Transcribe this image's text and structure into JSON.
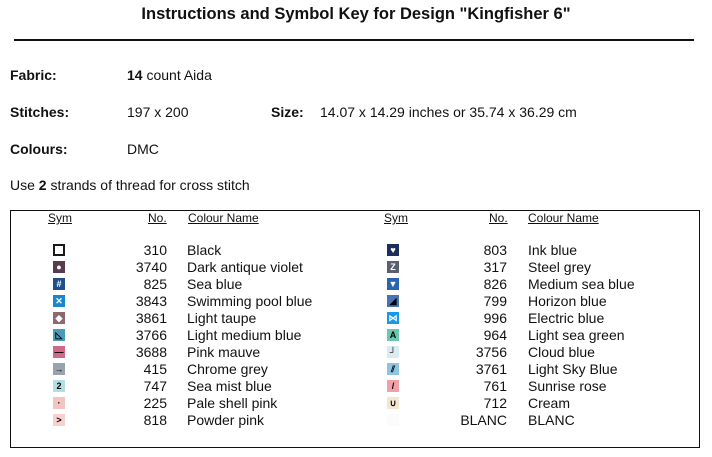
{
  "title": "Instructions and Symbol Key for Design \"Kingfisher 6\"",
  "fabric": {
    "label": "Fabric:",
    "count": "14",
    "rest": " count Aida"
  },
  "stitches": {
    "label": "Stitches:",
    "value": "197 x 200"
  },
  "size": {
    "label": "Size:",
    "value": "14.07 x 14.29 inches or 35.74 x 36.29 cm"
  },
  "colours": {
    "label": "Colours:",
    "value": "DMC"
  },
  "strands": {
    "pre": "Use ",
    "n": "2",
    "post": " strands of thread for cross stitch"
  },
  "headers": {
    "sym": "Sym",
    "no": "No.",
    "name": "Colour Name"
  },
  "left": [
    {
      "sym": "□",
      "bg": "#1a1a1a",
      "fg": "#fff",
      "no": "310",
      "name": "Black"
    },
    {
      "sym": "●",
      "bg": "#5a3a50",
      "fg": "#fff",
      "no": "3740",
      "name": "Dark antique violet"
    },
    {
      "sym": "#",
      "bg": "#1e4f8c",
      "fg": "#fff",
      "no": "825",
      "name": "Sea blue"
    },
    {
      "sym": "✕",
      "bg": "#1a86d0",
      "fg": "#fff",
      "no": "3843",
      "name": "Swimming pool blue"
    },
    {
      "sym": "◆",
      "bg": "#8a6a6e",
      "fg": "#fff",
      "no": "3861",
      "name": "Light taupe"
    },
    {
      "sym": "◺",
      "bg": "#4a9ab8",
      "fg": "#000",
      "no": "3766",
      "name": "Light medium blue"
    },
    {
      "sym": "—",
      "bg": "#d0688a",
      "fg": "#000",
      "no": "3688",
      "name": "Pink mauve"
    },
    {
      "sym": "→",
      "bg": "#9aa2ae",
      "fg": "#000",
      "no": "415",
      "name": "Chrome grey"
    },
    {
      "sym": "2",
      "bg": "#b4dfe2",
      "fg": "#000",
      "no": "747",
      "name": "Sea mist blue"
    },
    {
      "sym": "·",
      "bg": "#f4c4c0",
      "fg": "#000",
      "no": "225",
      "name": "Pale shell pink"
    },
    {
      "sym": ">",
      "bg": "#f8d0d0",
      "fg": "#000",
      "no": "818",
      "name": "Powder pink"
    }
  ],
  "right": [
    {
      "sym": "♥",
      "bg": "#1c2f5c",
      "fg": "#fff",
      "no": "803",
      "name": "Ink blue"
    },
    {
      "sym": "Z",
      "bg": "#5a6070",
      "fg": "#fff",
      "no": "317",
      "name": "Steel grey"
    },
    {
      "sym": "▼",
      "bg": "#2a66b0",
      "fg": "#fff",
      "no": "826",
      "name": "Medium sea blue"
    },
    {
      "sym": "◢",
      "bg": "#4a72b4",
      "fg": "#000",
      "no": "799",
      "name": "Horizon blue"
    },
    {
      "sym": "⋈",
      "bg": "#1a98e8",
      "fg": "#fff",
      "no": "996",
      "name": "Electric blue"
    },
    {
      "sym": "A",
      "bg": "#6ac8b0",
      "fg": "#000",
      "no": "964",
      "name": "Light sea green"
    },
    {
      "sym": "┘",
      "bg": "#dceaf2",
      "fg": "#000",
      "no": "3756",
      "name": "Cloud blue"
    },
    {
      "sym": "⫽",
      "bg": "#8ec4e0",
      "fg": "#000",
      "no": "3761",
      "name": "Light Sky Blue"
    },
    {
      "sym": "/",
      "bg": "#f0a0a8",
      "fg": "#000",
      "no": "761",
      "name": "Sunrise rose"
    },
    {
      "sym": "∪",
      "bg": "#f2e6d0",
      "fg": "#000",
      "no": "712",
      "name": "Cream"
    },
    {
      "sym": "",
      "bg": "#fbfbfb",
      "fg": "#000",
      "no": "BLANC",
      "name": "BLANC"
    }
  ]
}
